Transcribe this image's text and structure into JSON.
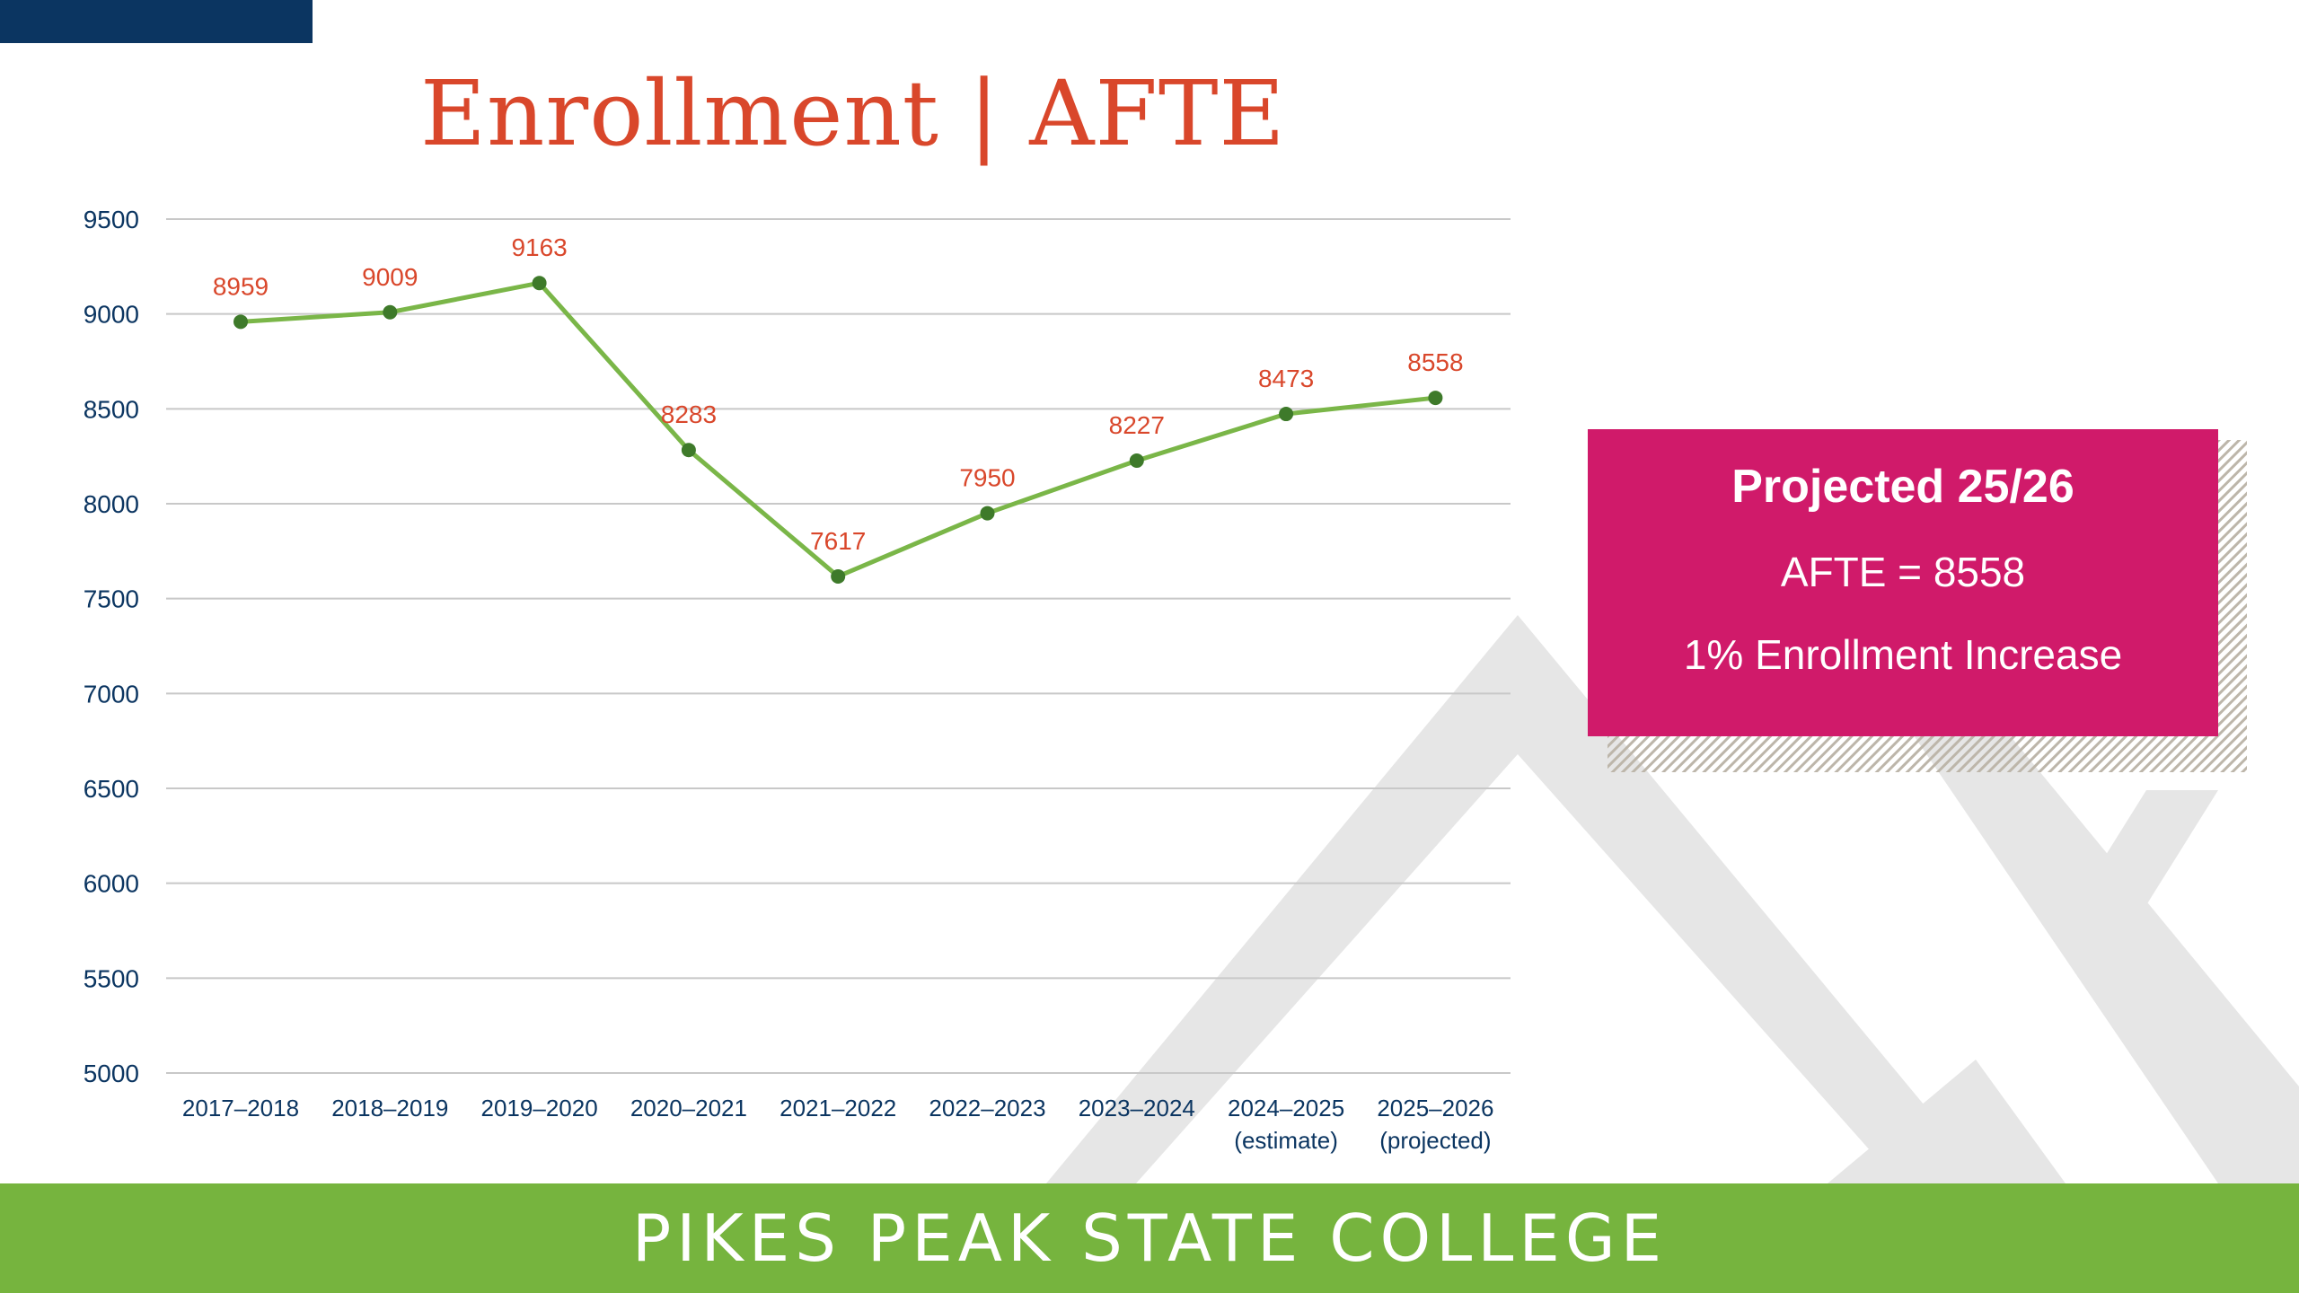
{
  "slide": {
    "title": "Enrollment | AFTE",
    "footer": "PIKES PEAK STATE COLLEGE",
    "colors": {
      "navy": "#0b3561",
      "title": "#d9472b",
      "line": "#7ab648",
      "marker": "#3e7a2a",
      "label": "#d9472b",
      "callout": "#d01a6a",
      "footer": "#76b43e"
    }
  },
  "callout": {
    "heading": "Projected 25/26",
    "line1": "AFTE = 8558",
    "line2": "1% Enrollment Increase"
  },
  "chart_data": {
    "type": "line",
    "title": "",
    "xlabel": "",
    "ylabel": "",
    "ylim": [
      5000,
      9500
    ],
    "yticks": [
      9500,
      9000,
      8500,
      8000,
      7500,
      7000,
      6500,
      6000,
      5500,
      5000
    ],
    "grid": true,
    "categories": [
      [
        "2017–2018"
      ],
      [
        "2018–2019"
      ],
      [
        "2019–2020"
      ],
      [
        "2020–2021"
      ],
      [
        "2021–2022"
      ],
      [
        "2022–2023"
      ],
      [
        "2023–2024"
      ],
      [
        "2024–2025",
        "(estimate)"
      ],
      [
        "2025–2026",
        "(projected)"
      ]
    ],
    "series": [
      {
        "values": [
          8959,
          9009,
          9163,
          8283,
          7617,
          7950,
          8227,
          8473,
          8558
        ]
      }
    ]
  }
}
